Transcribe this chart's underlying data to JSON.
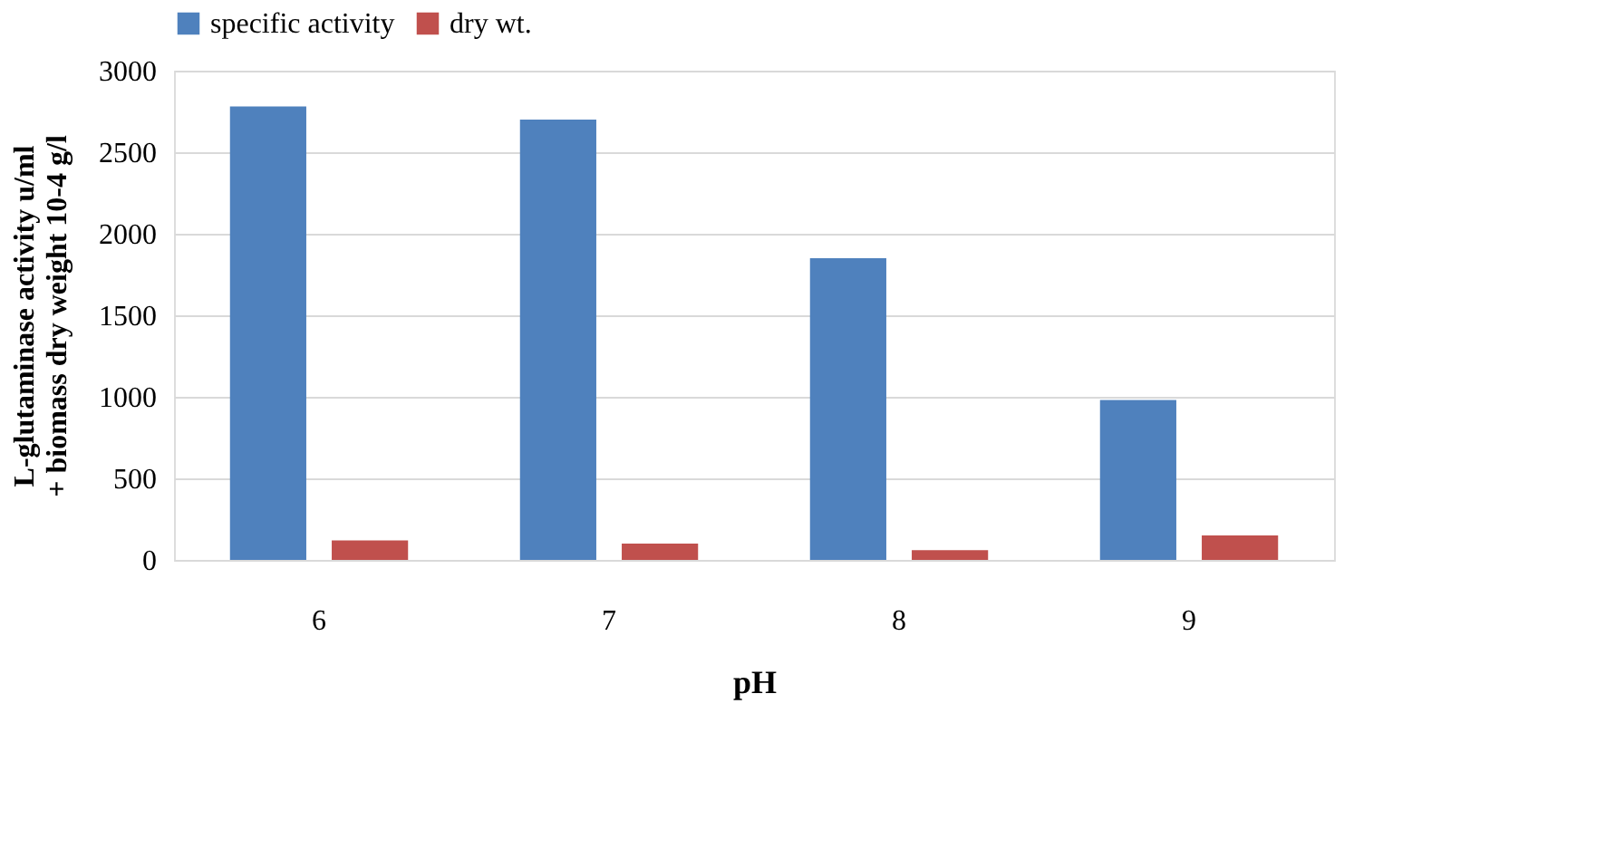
{
  "chart_data": {
    "type": "bar",
    "xlabel": "pH",
    "ylabel": "L-glutaminase activity u/ml + biomass dry weight 10-4 g/l",
    "categories": [
      "6",
      "7",
      "8",
      "9"
    ],
    "series": [
      {
        "name": "specific activity",
        "color": "#4f81bd",
        "values": [
          2780,
          2700,
          1850,
          980
        ]
      },
      {
        "name": "dry wt.",
        "color": "#c0504d",
        "values": [
          120,
          100,
          60,
          150
        ]
      }
    ],
    "ylim": [
      0,
      3000
    ],
    "yticks": [
      0,
      500,
      1000,
      1500,
      2000,
      2500,
      3000
    ],
    "grid": "y",
    "legend": "top"
  }
}
